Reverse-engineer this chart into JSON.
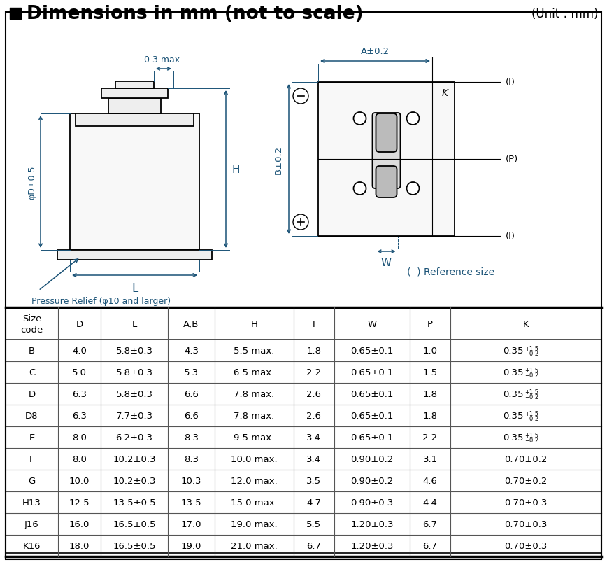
{
  "title": "Dimensions in mm (not to scale)",
  "unit_text": "(Unit : mm)",
  "bg_color": "#ffffff",
  "dim_color": "#1a5276",
  "table_headers": [
    "Size\ncode",
    "D",
    "L",
    "A,B",
    "H",
    "I",
    "W",
    "P",
    "K"
  ],
  "table_rows": [
    [
      "B",
      "4.0",
      "5.8±0.3",
      "4.3",
      "5.5 max.",
      "1.8",
      "0.65±0.1",
      "1.0",
      "0.35"
    ],
    [
      "C",
      "5.0",
      "5.8±0.3",
      "5.3",
      "6.5 max.",
      "2.2",
      "0.65±0.1",
      "1.5",
      "0.35"
    ],
    [
      "D",
      "6.3",
      "5.8±0.3",
      "6.6",
      "7.8 max.",
      "2.6",
      "0.65±0.1",
      "1.8",
      "0.35"
    ],
    [
      "D8",
      "6.3",
      "7.7±0.3",
      "6.6",
      "7.8 max.",
      "2.6",
      "0.65±0.1",
      "1.8",
      "0.35"
    ],
    [
      "E",
      "8.0",
      "6.2±0.3",
      "8.3",
      "9.5 max.",
      "3.4",
      "0.65±0.1",
      "2.2",
      "0.35"
    ],
    [
      "F",
      "8.0",
      "10.2±0.3",
      "8.3",
      "10.0 max.",
      "3.4",
      "0.90±0.2",
      "3.1",
      "0.70±0.2"
    ],
    [
      "G",
      "10.0",
      "10.2±0.3",
      "10.3",
      "12.0 max.",
      "3.5",
      "0.90±0.2",
      "4.6",
      "0.70±0.2"
    ],
    [
      "H13",
      "12.5",
      "13.5±0.5",
      "13.5",
      "15.0 max.",
      "4.7",
      "0.90±0.3",
      "4.4",
      "0.70±0.3"
    ],
    [
      "J16",
      "16.0",
      "16.5±0.5",
      "17.0",
      "19.0 max.",
      "5.5",
      "1.20±0.3",
      "6.7",
      "0.70±0.3"
    ],
    [
      "K16",
      "18.0",
      "16.5±0.5",
      "19.0",
      "21.0 max.",
      "6.7",
      "1.20±0.3",
      "6.7",
      "0.70±0.3"
    ]
  ],
  "k_superscript_rows": [
    0,
    1,
    2,
    3,
    4
  ],
  "col_props": [
    0.088,
    0.072,
    0.112,
    0.079,
    0.132,
    0.069,
    0.126,
    0.069,
    0.253
  ]
}
